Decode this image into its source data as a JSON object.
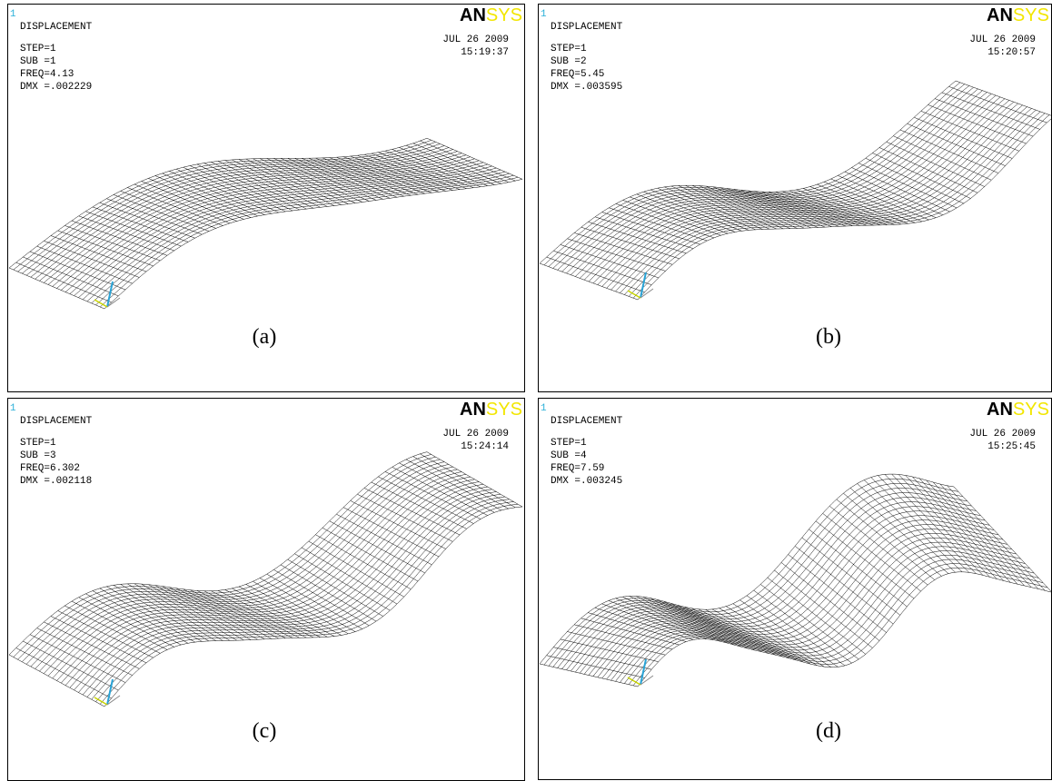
{
  "panels": [
    {
      "window": "1",
      "title": "DISPLACEMENT",
      "step": "STEP=1",
      "sub": "SUB =1",
      "freq": "FREQ=4.13",
      "dmx": "DMX =.002229",
      "date": "JUL 26 2009",
      "time": "15:19:37",
      "logo_main": "AN",
      "logo_accent": "SYS",
      "caption": "(a)"
    },
    {
      "window": "1",
      "title": "DISPLACEMENT",
      "step": "STEP=1",
      "sub": "SUB =2",
      "freq": "FREQ=5.45",
      "dmx": "DMX =.003595",
      "date": "JUL 26 2009",
      "time": "15:20:57",
      "logo_main": "AN",
      "logo_accent": "SYS",
      "caption": "(b)"
    },
    {
      "window": "1",
      "title": "DISPLACEMENT",
      "step": "STEP=1",
      "sub": "SUB =3",
      "freq": "FREQ=6.302",
      "dmx": "DMX =.002118",
      "date": "JUL 26 2009",
      "time": "15:24:14",
      "logo_main": "AN",
      "logo_accent": "SYS",
      "caption": "(c)"
    },
    {
      "window": "1",
      "title": "DISPLACEMENT",
      "step": "STEP=1",
      "sub": "SUB =4",
      "freq": "FREQ=7.59",
      "dmx": "DMX =.003245",
      "date": "JUL 26 2009",
      "time": "15:25:45",
      "logo_main": "AN",
      "logo_accent": "SYS",
      "caption": "(d)"
    }
  ]
}
